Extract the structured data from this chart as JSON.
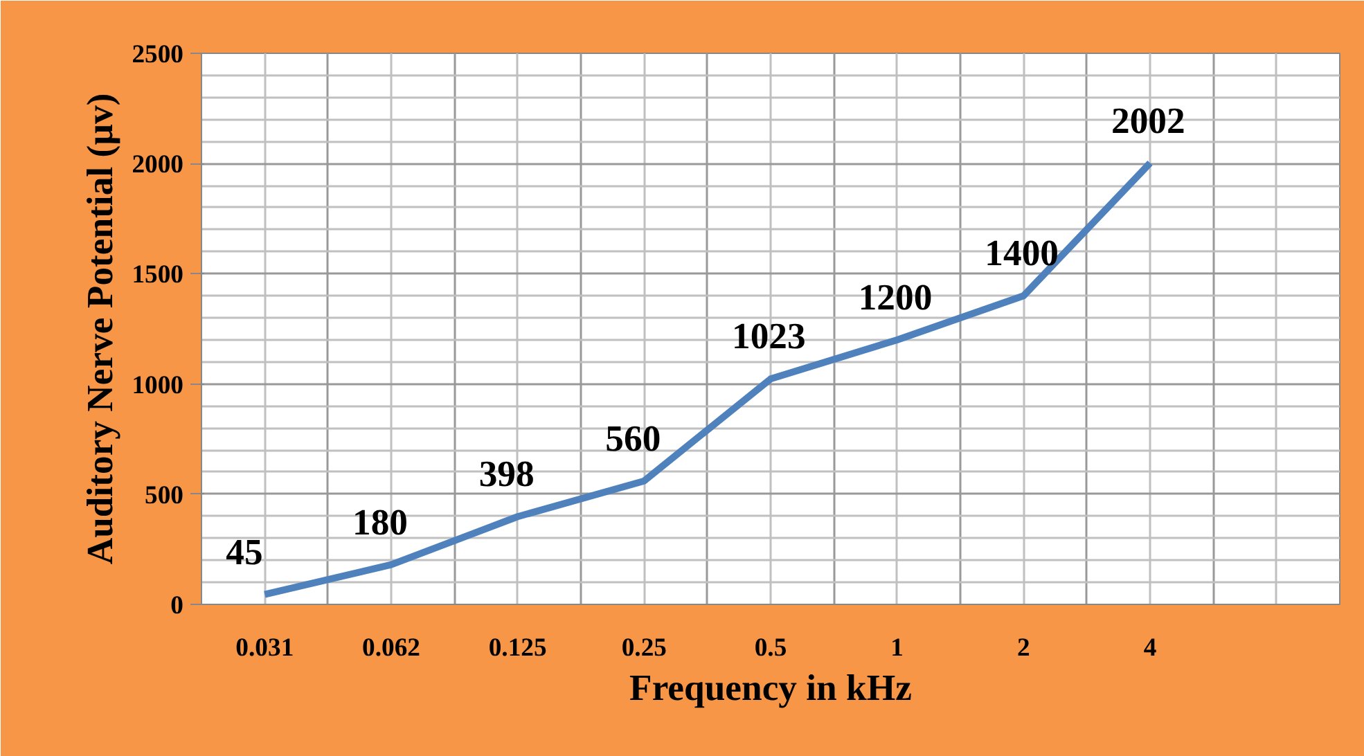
{
  "chart_data": {
    "type": "line",
    "xlabel": "Frequency in kHz",
    "ylabel": "Auditory Nerve Potential (µv)",
    "categories": [
      "0.031",
      "0.062",
      "0.125",
      "0.25",
      "0.5",
      "1",
      "2",
      "4",
      null
    ],
    "series": [
      {
        "color": "#4f81bd",
        "values": [
          45,
          180,
          398,
          560,
          1023,
          1200,
          1400,
          2002,
          null
        ]
      }
    ],
    "ylim": [
      0,
      2500
    ],
    "yticks": [
      0,
      {
        "value": 100,
        "label": null
      },
      {
        "value": 200,
        "label": null
      },
      {
        "value": 300,
        "label": null
      },
      {
        "value": 400,
        "label": null
      },
      500,
      {
        "value": 600,
        "label": null
      },
      {
        "value": 700,
        "label": null
      },
      {
        "value": 800,
        "label": null
      },
      {
        "value": 900,
        "label": null
      },
      1000,
      {
        "value": 1100,
        "label": null
      },
      {
        "value": 1200,
        "label": null
      },
      {
        "value": 1300,
        "label": null
      },
      {
        "value": 1400,
        "label": null
      },
      1500,
      {
        "value": 1600,
        "label": null
      },
      {
        "value": 1700,
        "label": null
      },
      {
        "value": 1800,
        "label": null
      },
      {
        "value": 1900,
        "label": null
      },
      2000,
      {
        "value": 2100,
        "label": null
      },
      {
        "value": 2200,
        "label": null
      },
      {
        "value": 2300,
        "label": null
      },
      {
        "value": 2400,
        "label": null
      },
      2500
    ],
    "grid": true,
    "data_labels": true,
    "marker": "none",
    "line_style": "solid"
  }
}
